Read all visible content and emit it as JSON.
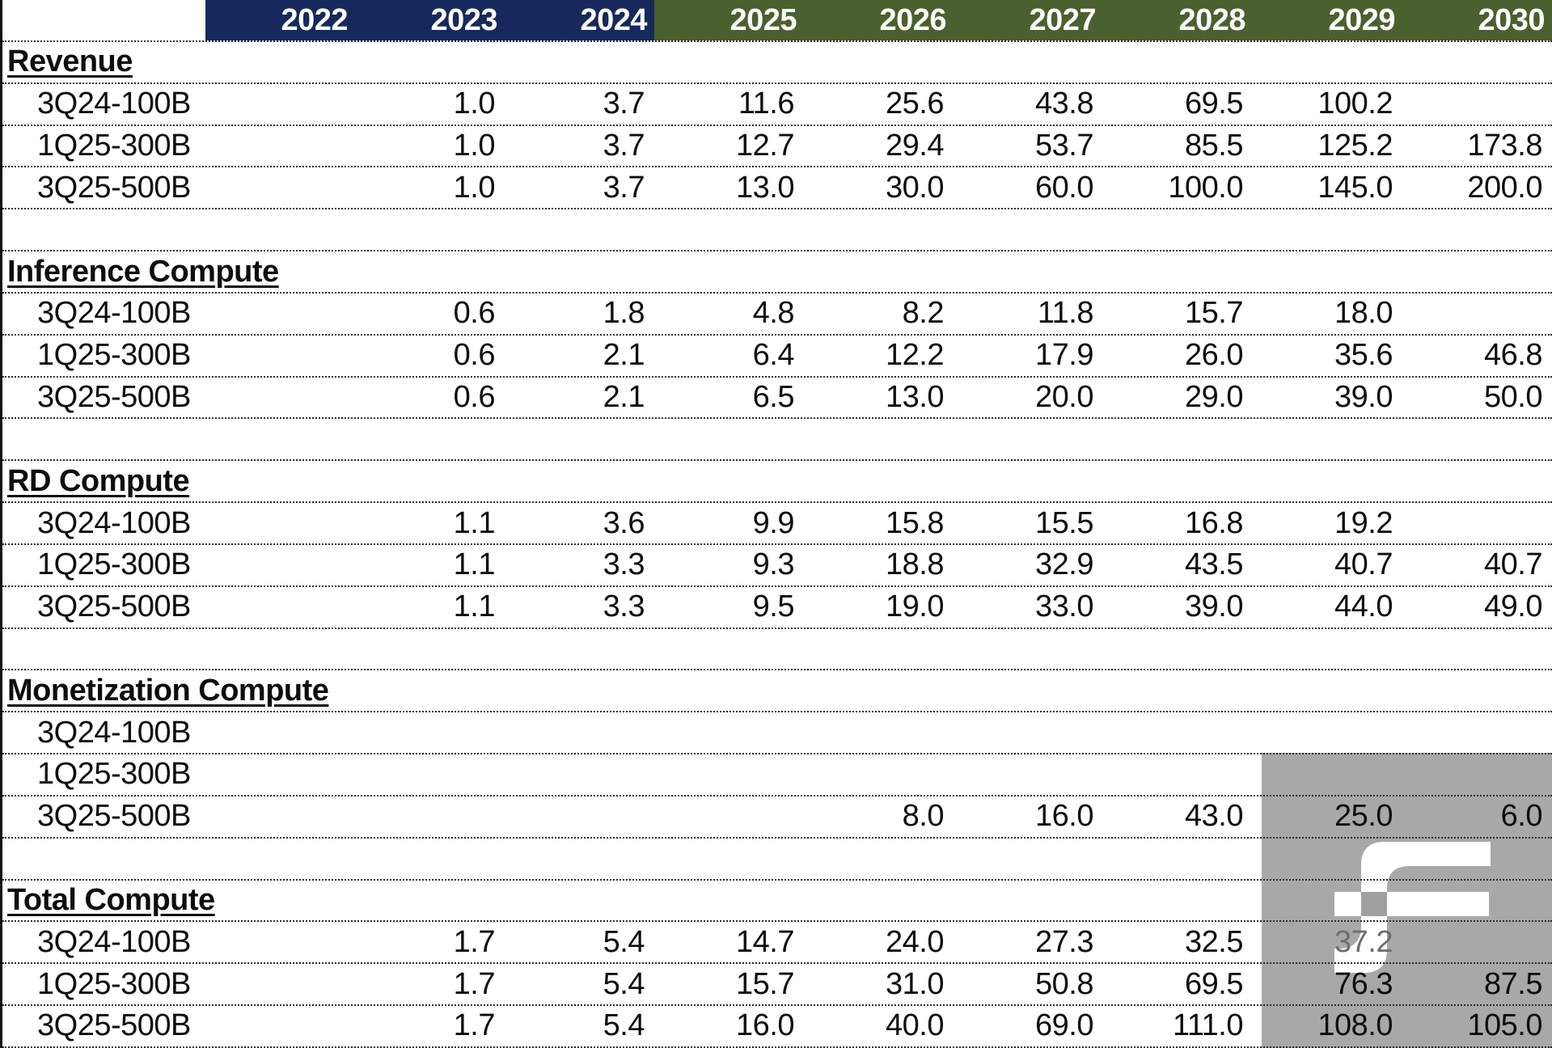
{
  "header": {
    "row_label": "",
    "years": [
      "2022",
      "2023",
      "2024",
      "2025",
      "2026",
      "2027",
      "2028",
      "2029",
      "2030"
    ],
    "historical_years": [
      "2022",
      "2023",
      "2024"
    ],
    "historical_color": "#17295c",
    "forecast_color": "#4b602e"
  },
  "sections": [
    {
      "title": "Revenue",
      "rows": [
        {
          "label": "3Q24-100B",
          "values": [
            "",
            "1.0",
            "3.7",
            "11.6",
            "25.6",
            "43.8",
            "69.5",
            "100.2",
            ""
          ]
        },
        {
          "label": "1Q25-300B",
          "values": [
            "",
            "1.0",
            "3.7",
            "12.7",
            "29.4",
            "53.7",
            "85.5",
            "125.2",
            "173.8"
          ]
        },
        {
          "label": "3Q25-500B",
          "values": [
            "",
            "1.0",
            "3.7",
            "13.0",
            "30.0",
            "60.0",
            "100.0",
            "145.0",
            "200.0"
          ]
        }
      ]
    },
    {
      "title": "Inference Compute",
      "rows": [
        {
          "label": "3Q24-100B",
          "values": [
            "",
            "0.6",
            "1.8",
            "4.8",
            "8.2",
            "11.8",
            "15.7",
            "18.0",
            ""
          ]
        },
        {
          "label": "1Q25-300B",
          "values": [
            "",
            "0.6",
            "2.1",
            "6.4",
            "12.2",
            "17.9",
            "26.0",
            "35.6",
            "46.8"
          ]
        },
        {
          "label": "3Q25-500B",
          "values": [
            "",
            "0.6",
            "2.1",
            "6.5",
            "13.0",
            "20.0",
            "29.0",
            "39.0",
            "50.0"
          ]
        }
      ]
    },
    {
      "title": "RD Compute",
      "rows": [
        {
          "label": "3Q24-100B",
          "values": [
            "",
            "1.1",
            "3.6",
            "9.9",
            "15.8",
            "15.5",
            "16.8",
            "19.2",
            ""
          ]
        },
        {
          "label": "1Q25-300B",
          "values": [
            "",
            "1.1",
            "3.3",
            "9.3",
            "18.8",
            "32.9",
            "43.5",
            "40.7",
            "40.7"
          ]
        },
        {
          "label": "3Q25-500B",
          "values": [
            "",
            "1.1",
            "3.3",
            "9.5",
            "19.0",
            "33.0",
            "39.0",
            "44.0",
            "49.0"
          ]
        }
      ]
    },
    {
      "title": "Monetization Compute",
      "rows": [
        {
          "label": "3Q24-100B",
          "values": [
            "",
            "",
            "",
            "",
            "",
            "",
            "",
            "",
            ""
          ]
        },
        {
          "label": "1Q25-300B",
          "values": [
            "",
            "",
            "",
            "",
            "",
            "",
            "",
            "",
            ""
          ]
        },
        {
          "label": "3Q25-500B",
          "values": [
            "",
            "",
            "",
            "",
            "8.0",
            "16.0",
            "43.0",
            "25.0",
            "6.0"
          ]
        }
      ]
    },
    {
      "title": "Total Compute",
      "rows": [
        {
          "label": "3Q24-100B",
          "values": [
            "",
            "1.7",
            "5.4",
            "14.7",
            "24.0",
            "27.3",
            "32.5",
            "37.2",
            ""
          ],
          "muted": [
            7
          ]
        },
        {
          "label": "1Q25-300B",
          "values": [
            "",
            "1.7",
            "5.4",
            "15.7",
            "31.0",
            "50.8",
            "69.5",
            "76.3",
            "87.5"
          ]
        },
        {
          "label": "3Q25-500B",
          "values": [
            "",
            "1.7",
            "5.4",
            "16.0",
            "40.0",
            "69.0",
            "111.0",
            "108.0",
            "105.0"
          ]
        }
      ]
    }
  ],
  "watermark": {
    "icon": "f-logo",
    "background_color": "#a8a8a8",
    "logo_color": "#ffffff",
    "muted_value_color": "#6e6e6e"
  }
}
